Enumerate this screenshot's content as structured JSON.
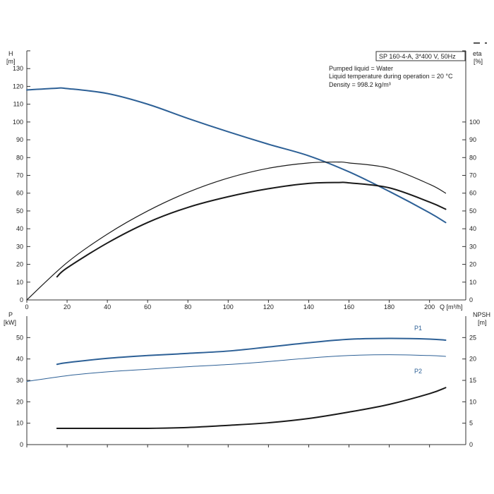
{
  "chart_data": [
    {
      "type": "line",
      "title": "SP 160-4-A, 3*400 V, 50Hz",
      "notes": [
        "Pumped liquid = Water",
        "Liquid temperature during operation = 20 °C",
        "Density = 998.2 kg/m³"
      ],
      "xlabel": "Q [m³/h]",
      "ylabel": "H",
      "ylabel_unit": "[m]",
      "y2label": "eta",
      "y2label_unit": "[%]",
      "xlim": [
        0,
        218
      ],
      "ylim": [
        0,
        140
      ],
      "y2lim": [
        0,
        140
      ],
      "xticks": [
        0,
        20,
        40,
        60,
        80,
        100,
        120,
        140,
        160,
        180,
        200
      ],
      "yticks": [
        0,
        10,
        20,
        30,
        40,
        50,
        60,
        70,
        80,
        90,
        100,
        110,
        120,
        130
      ],
      "y2ticks": [
        0,
        10,
        20,
        30,
        40,
        50,
        60,
        70,
        80,
        90,
        100
      ],
      "grid": false,
      "series": [
        {
          "name": "",
          "axis": "y",
          "color": "#2d6096",
          "width": 2,
          "x": [
            0,
            15,
            20,
            40,
            60,
            80,
            100,
            120,
            140,
            160,
            180,
            200,
            208
          ],
          "y": [
            118,
            119,
            118.8,
            116,
            110,
            102,
            94.5,
            87.5,
            81,
            72,
            61,
            49,
            43.5
          ]
        },
        {
          "name": "",
          "axis": "y2",
          "color": "#1a1a1a",
          "width": 1.2,
          "x": [
            0,
            20,
            40,
            60,
            80,
            100,
            120,
            140,
            155,
            160,
            180,
            200,
            208
          ],
          "y": [
            0,
            21,
            37,
            50,
            60.5,
            68.5,
            74,
            77,
            77.5,
            77,
            74,
            65,
            60
          ]
        },
        {
          "name": "",
          "axis": "y2",
          "color": "#1a1a1a",
          "width": 2,
          "x": [
            15,
            20,
            40,
            60,
            80,
            100,
            120,
            140,
            155,
            160,
            180,
            200,
            208
          ],
          "y": [
            13,
            18,
            32,
            43.5,
            52,
            58,
            62.5,
            65.5,
            66,
            65.8,
            63,
            55,
            51
          ]
        }
      ]
    },
    {
      "type": "line",
      "xlabel": "",
      "ylabel": "P",
      "ylabel_unit": "[kW]",
      "y2label": "NPSH",
      "y2label_unit": "[m]",
      "xlim": [
        0,
        218
      ],
      "ylim": [
        0,
        60
      ],
      "y2lim": [
        0,
        30
      ],
      "yticks": [
        0,
        10,
        20,
        30,
        40,
        50
      ],
      "y2ticks": [
        0,
        5,
        10,
        15,
        20,
        25
      ],
      "grid": false,
      "series": [
        {
          "name": "P1",
          "axis": "y",
          "color": "#2d6096",
          "width": 2,
          "x": [
            15,
            20,
            40,
            60,
            80,
            100,
            120,
            140,
            160,
            180,
            200,
            208
          ],
          "y": [
            37.5,
            38.3,
            40.3,
            41.6,
            42.6,
            43.7,
            45.6,
            47.6,
            49.2,
            49.6,
            49.3,
            48.8
          ]
        },
        {
          "name": "P2",
          "axis": "y",
          "color": "#2d6096",
          "width": 1,
          "x": [
            0,
            20,
            40,
            60,
            80,
            100,
            120,
            140,
            160,
            180,
            200,
            208
          ],
          "y": [
            29.5,
            32.2,
            34,
            35.2,
            36.4,
            37.4,
            38.8,
            40.4,
            41.6,
            42,
            41.6,
            41.2
          ]
        },
        {
          "name": "",
          "axis": "y2",
          "color": "#1a1a1a",
          "width": 2,
          "x": [
            15,
            20,
            40,
            60,
            80,
            100,
            120,
            140,
            160,
            180,
            200,
            208
          ],
          "y": [
            3.8,
            3.8,
            3.8,
            3.8,
            4,
            4.5,
            5.1,
            6.1,
            7.6,
            9.4,
            11.9,
            13.3
          ]
        }
      ]
    }
  ],
  "legend_icon": "dash-legend-icon"
}
